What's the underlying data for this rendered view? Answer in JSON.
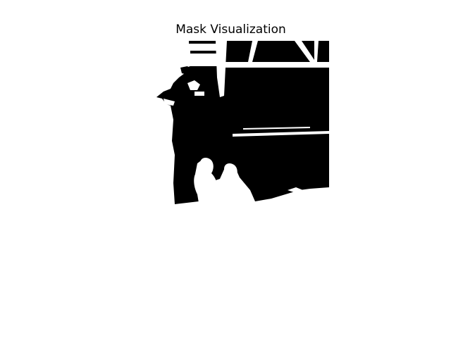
{
  "figure": {
    "title": "Mask Visualization",
    "background_color": "#ffffff",
    "mask_foreground_color": "#000000",
    "mask_background_color": "#ffffff"
  }
}
